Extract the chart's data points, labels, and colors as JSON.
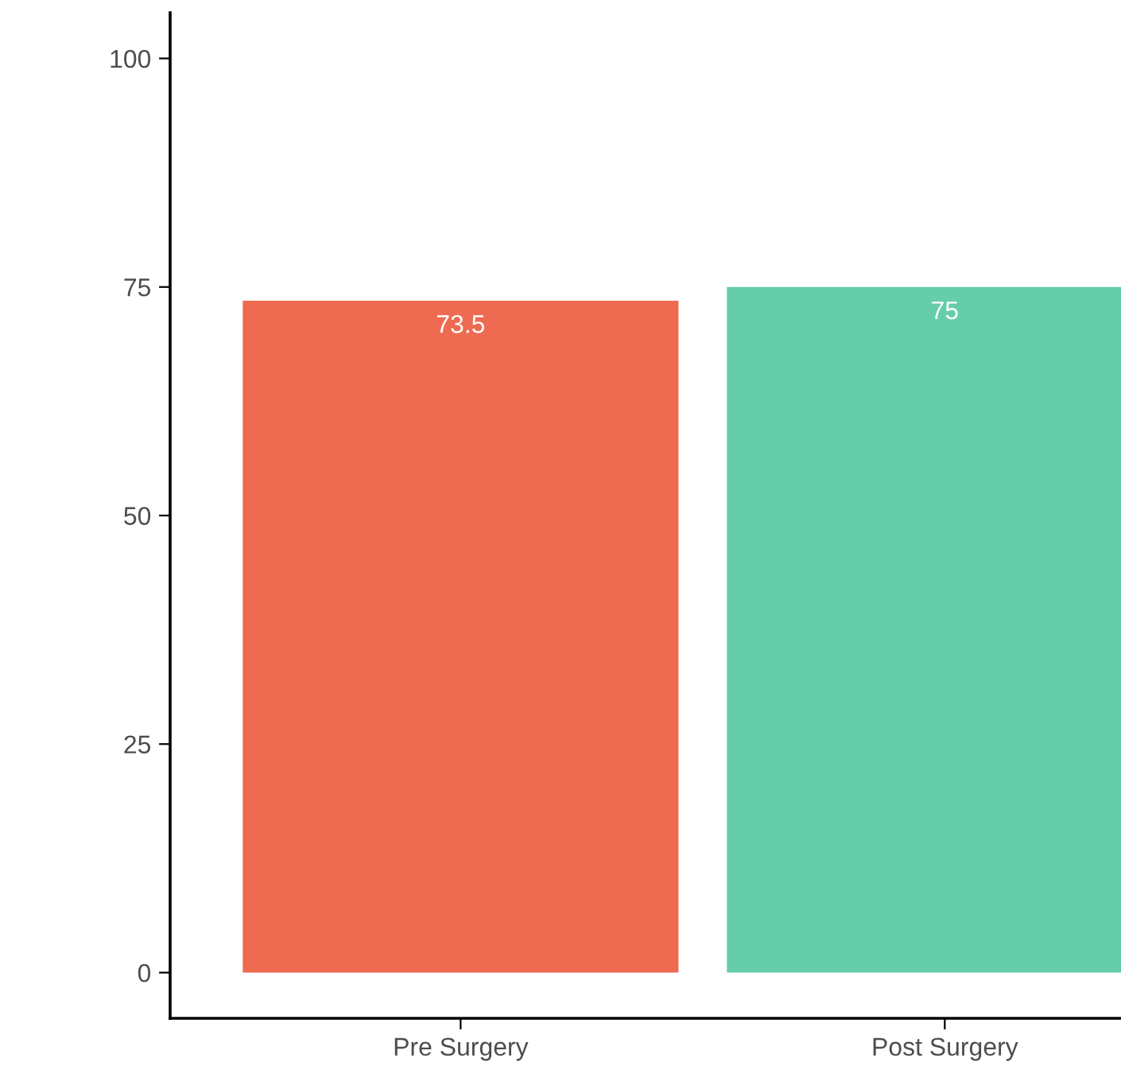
{
  "chart_data": {
    "type": "bar",
    "categories": [
      "Pre Surgery",
      "Post Surgery"
    ],
    "values": [
      73.5,
      75
    ],
    "colors": [
      "#ee6a50",
      "#66cdaa"
    ],
    "ylim": [
      -5,
      105
    ],
    "yticks": [
      0,
      25,
      50,
      75,
      100
    ],
    "grid": false,
    "data_labels": true
  }
}
